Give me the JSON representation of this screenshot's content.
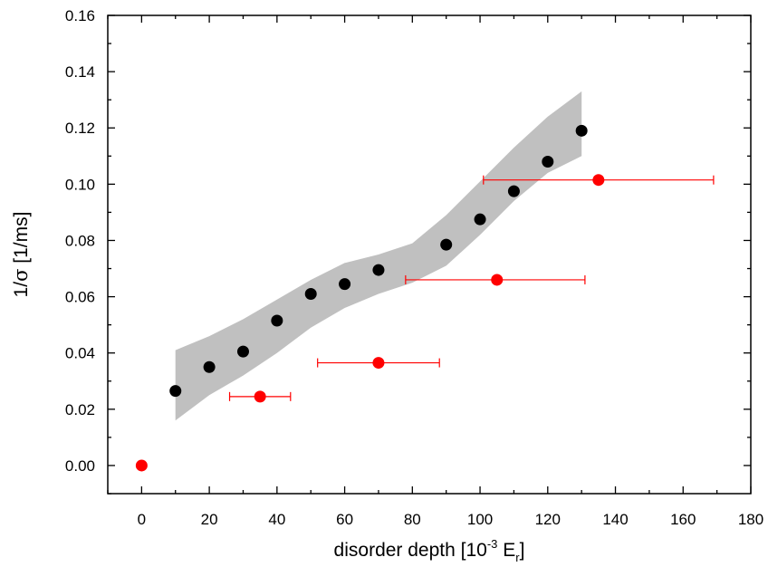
{
  "chart_data": {
    "type": "scatter",
    "title": "",
    "xlabel": "disorder depth [10^-3 E_r]",
    "ylabel": "1/σ [1/ms]",
    "xlabel_parts": {
      "prefix": "disorder depth [10",
      "exp": "-3",
      "mid": " E",
      "sub": "r",
      "suffix": "]"
    },
    "ylabel_parts": {
      "prefix": "1/",
      "sigma": "σ",
      "suffix": "  [1/ms]"
    },
    "xlim": [
      -10,
      180
    ],
    "ylim": [
      -0.01,
      0.16
    ],
    "x_ticks": [
      0,
      20,
      40,
      60,
      80,
      100,
      120,
      140,
      160,
      180
    ],
    "x_tick_labels": [
      "0",
      "20",
      "40",
      "60",
      "80",
      "100",
      "120",
      "140",
      "160",
      "180"
    ],
    "y_ticks": [
      0.0,
      0.02,
      0.04,
      0.06,
      0.08,
      0.1,
      0.12,
      0.14,
      0.16
    ],
    "y_tick_labels": [
      "0.00",
      "0.02",
      "0.04",
      "0.06",
      "0.08",
      "0.10",
      "0.12",
      "0.14",
      "0.16"
    ],
    "grid": false,
    "band": {
      "color": "#c0c0c0",
      "x": [
        10,
        20,
        30,
        40,
        50,
        60,
        70,
        80,
        90,
        100,
        110,
        120,
        130
      ],
      "upper": [
        0.041,
        0.046,
        0.052,
        0.059,
        0.066,
        0.072,
        0.075,
        0.079,
        0.089,
        0.101,
        0.113,
        0.124,
        0.133
      ],
      "lower": [
        0.016,
        0.025,
        0.032,
        0.04,
        0.049,
        0.056,
        0.061,
        0.065,
        0.071,
        0.082,
        0.094,
        0.104,
        0.11
      ]
    },
    "series": [
      {
        "color": "#000000",
        "x": [
          10,
          20,
          30,
          40,
          50,
          60,
          70,
          90,
          100,
          110,
          120,
          130
        ],
        "y": [
          0.0265,
          0.035,
          0.0405,
          0.0515,
          0.061,
          0.0645,
          0.0695,
          0.0785,
          0.0875,
          0.0975,
          0.108,
          0.119
        ]
      },
      {
        "color": "#ff0000",
        "x": [
          0,
          35,
          70,
          105,
          135
        ],
        "y": [
          0.0,
          0.0245,
          0.0365,
          0.066,
          0.1015
        ],
        "x_err_low": [
          0,
          9,
          18,
          27,
          34
        ],
        "x_err_high": [
          0,
          9,
          18,
          26,
          34
        ]
      }
    ]
  }
}
